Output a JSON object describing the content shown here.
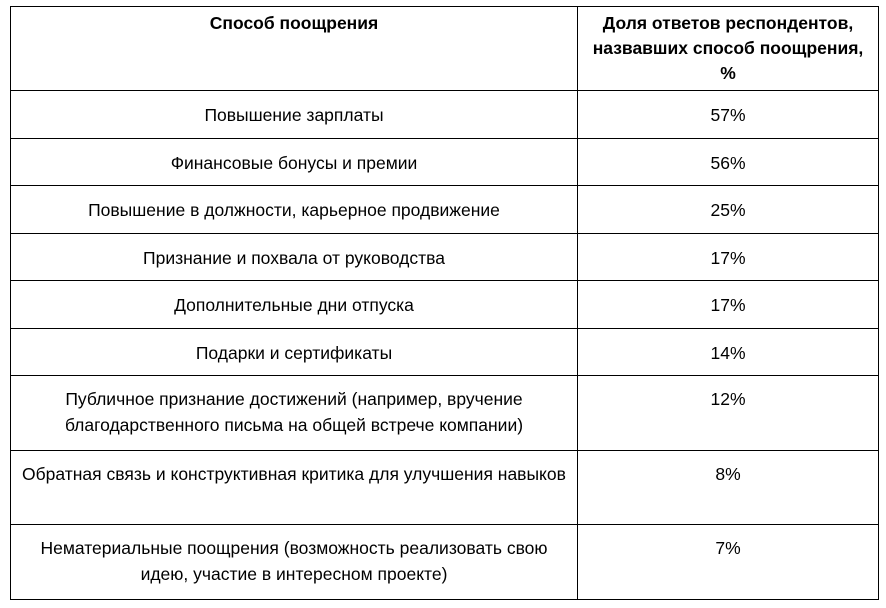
{
  "table": {
    "header": [
      "Способ поощрения",
      "Доля ответов респондентов, назвавших способ поощрения, %"
    ],
    "rows": [
      [
        "Повышение зарплаты",
        "57%"
      ],
      [
        "Финансовые бонусы и премии",
        "56%"
      ],
      [
        "Повышение в должности, карьерное продвижение",
        "25%"
      ],
      [
        "Признание и похвала от руководства",
        "17%"
      ],
      [
        "Дополнительные дни отпуска",
        "17%"
      ],
      [
        "Подарки и сертификаты",
        "14%"
      ],
      [
        "Публичное признание достижений (например, вручение благодарственного письма на общей встрече компании)",
        "12%"
      ],
      [
        "Обратная связь и конструктивная критика для улучшения навыков",
        "8%"
      ],
      [
        "Нематериальные поощрения (возможность реализовать свою идею, участие в интересном проекте)",
        "7%"
      ]
    ]
  }
}
